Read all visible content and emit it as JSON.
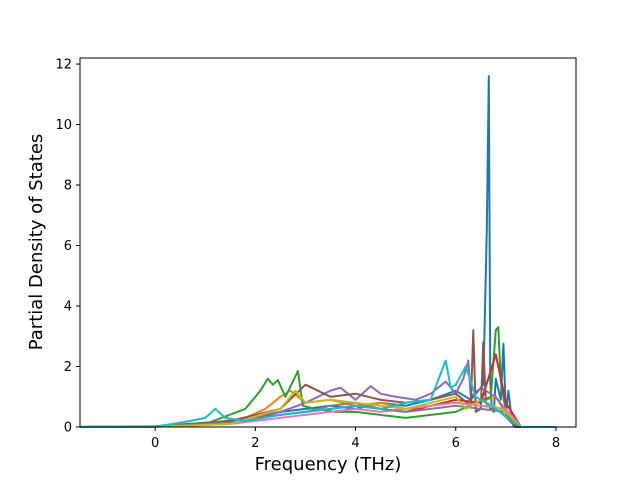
{
  "chart_data": {
    "type": "line",
    "title": "",
    "xlabel": "Frequency (THz)",
    "ylabel": "Partial Density of States",
    "xlim": [
      -1.5,
      8.4
    ],
    "ylim": [
      0,
      12.2
    ],
    "xticks": [
      0,
      2,
      4,
      6,
      8
    ],
    "yticks": [
      0,
      2,
      4,
      6,
      8,
      10,
      12
    ],
    "grid": false,
    "legend": "none",
    "colors": [
      "#1f77b4",
      "#ff7f0e",
      "#2ca02c",
      "#d62728",
      "#9467bd",
      "#8c564b",
      "#e377c2",
      "#7f7f7f",
      "#bcbd22",
      "#17becf"
    ],
    "series": [
      {
        "color": "#1f77b4",
        "x": [
          -1.5,
          0.0,
          0.8,
          1.5,
          2.0,
          2.5,
          3.0,
          3.5,
          4.0,
          4.5,
          5.0,
          5.5,
          6.0,
          6.3,
          6.55,
          6.62,
          6.66,
          6.69,
          6.72,
          6.76,
          6.8,
          6.9,
          6.95,
          7.0,
          7.05,
          7.1,
          7.15,
          7.3,
          8.0
        ],
        "y": [
          0,
          0.02,
          0.1,
          0.2,
          0.3,
          0.5,
          0.6,
          0.7,
          0.6,
          0.8,
          0.7,
          0.9,
          1.2,
          0.9,
          1.4,
          6.5,
          11.6,
          1.5,
          0.6,
          0.5,
          1.6,
          0.9,
          2.75,
          0.4,
          1.2,
          0.5,
          0.05,
          0,
          0
        ]
      },
      {
        "color": "#ff7f0e",
        "x": [
          -1.5,
          0.0,
          1.0,
          1.8,
          2.2,
          2.5,
          2.7,
          3.0,
          3.5,
          4.0,
          4.5,
          5.0,
          5.5,
          6.0,
          6.4,
          6.8,
          7.1,
          7.3,
          8.0
        ],
        "y": [
          0,
          0.03,
          0.1,
          0.3,
          0.6,
          1.0,
          1.2,
          0.8,
          0.9,
          0.7,
          0.8,
          0.6,
          0.7,
          0.9,
          0.8,
          1.0,
          0.2,
          0,
          0
        ]
      },
      {
        "color": "#2ca02c",
        "x": [
          -1.5,
          0.0,
          1.0,
          1.8,
          2.1,
          2.25,
          2.35,
          2.45,
          2.6,
          2.75,
          2.85,
          2.95,
          3.2,
          3.6,
          4.0,
          4.5,
          5.0,
          5.5,
          6.0,
          6.4,
          6.7,
          6.8,
          6.85,
          6.9,
          7.0,
          7.2,
          8.0
        ],
        "y": [
          0,
          0.02,
          0.1,
          0.6,
          1.2,
          1.6,
          1.4,
          1.55,
          1.0,
          1.5,
          1.85,
          0.7,
          0.6,
          0.5,
          0.5,
          0.4,
          0.3,
          0.4,
          0.5,
          0.8,
          1.0,
          3.2,
          3.3,
          1.5,
          0.5,
          0,
          0
        ]
      },
      {
        "color": "#d62728",
        "x": [
          -1.5,
          0.0,
          1.5,
          2.5,
          3.0,
          3.5,
          4.0,
          4.5,
          5.0,
          5.5,
          6.0,
          6.5,
          6.8,
          7.0,
          7.3,
          8.0
        ],
        "y": [
          0,
          0.01,
          0.2,
          0.4,
          0.5,
          0.6,
          0.7,
          0.6,
          0.5,
          0.7,
          0.9,
          0.8,
          2.4,
          0.8,
          0,
          0
        ]
      },
      {
        "color": "#9467bd",
        "x": [
          -1.5,
          0.0,
          1.5,
          2.5,
          3.0,
          3.5,
          3.7,
          4.0,
          4.3,
          4.5,
          4.8,
          5.2,
          5.5,
          5.8,
          6.0,
          6.15,
          6.25,
          6.3,
          6.5,
          6.8,
          7.1,
          7.3,
          8.0
        ],
        "y": [
          0,
          0.02,
          0.2,
          0.5,
          0.8,
          1.2,
          1.3,
          0.9,
          1.35,
          1.1,
          1.0,
          0.9,
          1.1,
          1.5,
          1.1,
          1.6,
          2.2,
          1.0,
          1.3,
          1.0,
          0.3,
          0,
          0
        ]
      },
      {
        "color": "#8c564b",
        "x": [
          -1.5,
          0.0,
          1.5,
          2.5,
          3.0,
          3.5,
          4.0,
          4.5,
          5.0,
          5.5,
          6.0,
          6.3,
          6.35,
          6.4,
          6.5,
          6.55,
          6.6,
          6.7,
          6.9,
          7.2,
          8.0
        ],
        "y": [
          0,
          0.02,
          0.2,
          0.6,
          1.4,
          1.0,
          1.1,
          0.9,
          0.8,
          0.9,
          1.1,
          0.7,
          3.2,
          0.5,
          0.6,
          2.8,
          0.8,
          0.6,
          0.5,
          0,
          0
        ]
      },
      {
        "color": "#e377c2",
        "x": [
          -1.5,
          0.0,
          1.5,
          2.5,
          3.0,
          3.5,
          4.0,
          4.5,
          5.0,
          5.5,
          6.0,
          6.5,
          7.0,
          7.3,
          8.0
        ],
        "y": [
          0,
          0.01,
          0.1,
          0.3,
          0.4,
          0.5,
          0.6,
          0.5,
          0.6,
          0.7,
          0.8,
          0.7,
          0.6,
          0,
          0
        ]
      },
      {
        "color": "#7f7f7f",
        "x": [
          -1.5,
          0.0,
          1.5,
          2.5,
          3.0,
          3.5,
          4.0,
          4.5,
          5.0,
          5.5,
          6.0,
          6.5,
          7.0,
          7.3,
          8.0
        ],
        "y": [
          0,
          0.01,
          0.15,
          0.4,
          0.5,
          0.7,
          0.8,
          0.6,
          0.5,
          0.6,
          0.7,
          0.6,
          0.5,
          0,
          0
        ]
      },
      {
        "color": "#bcbd22",
        "x": [
          -1.5,
          0.0,
          1.5,
          2.5,
          2.8,
          3.0,
          3.5,
          4.0,
          4.5,
          5.0,
          5.5,
          6.0,
          6.2,
          6.5,
          7.0,
          7.3,
          8.0
        ],
        "y": [
          0,
          0.01,
          0.1,
          0.6,
          1.2,
          0.8,
          0.9,
          0.8,
          0.7,
          0.6,
          0.8,
          1.0,
          0.6,
          0.9,
          0.5,
          0,
          0
        ]
      },
      {
        "color": "#17becf",
        "x": [
          -1.5,
          0.0,
          0.7,
          1.0,
          1.2,
          1.4,
          1.8,
          2.5,
          3.0,
          3.5,
          4.0,
          4.5,
          5.0,
          5.5,
          5.8,
          5.9,
          6.0,
          6.2,
          6.4,
          6.8,
          7.1,
          7.3,
          8.0
        ],
        "y": [
          0,
          0.01,
          0.2,
          0.3,
          0.6,
          0.3,
          0.2,
          0.4,
          0.5,
          0.6,
          0.7,
          0.6,
          0.8,
          0.9,
          2.2,
          1.3,
          1.4,
          2.0,
          1.0,
          0.6,
          0.2,
          0,
          0
        ]
      }
    ]
  }
}
